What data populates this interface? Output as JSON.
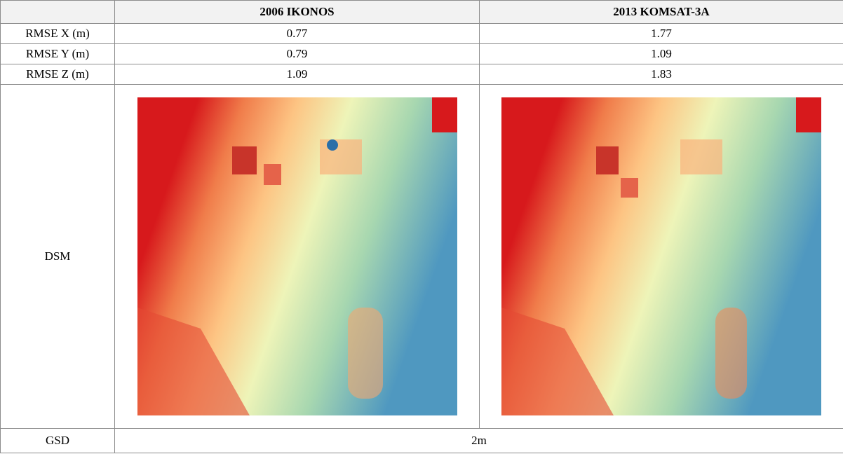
{
  "table": {
    "columns": [
      "2006 IKONOS",
      "2013 KOMSAT-3A"
    ],
    "rows": [
      {
        "label": "RMSE X (m)",
        "values": [
          0.77,
          1.77
        ]
      },
      {
        "label": "RMSE Y (m)",
        "values": [
          0.79,
          1.09
        ]
      },
      {
        "label": "RMSE Z (m)",
        "values": [
          1.09,
          1.83
        ]
      }
    ],
    "dsm_label": "DSM",
    "gsd": {
      "label": "GSD",
      "value": "2m"
    }
  }
}
